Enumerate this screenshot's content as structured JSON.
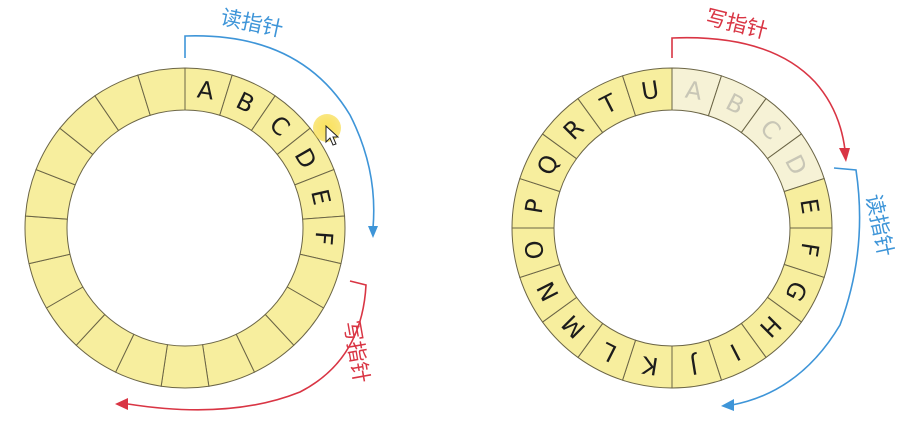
{
  "colors": {
    "background": "#ffffff",
    "cell_fill": "#f7ee9e",
    "cell_fill_faded": "#f6f2d6",
    "cell_stroke": "#6b6546",
    "letter": "#1c1c1c",
    "letter_faded": "#c8c6b6",
    "read_pointer": "#3e95d8",
    "write_pointer": "#d93544",
    "cursor_highlight": "#f5d31c"
  },
  "left_ring": {
    "cells": [
      "A",
      "B",
      "C",
      "D",
      "E",
      "F",
      "",
      "",
      "",
      "",
      "",
      "",
      "",
      "",
      "",
      "",
      "",
      "",
      "",
      "",
      ""
    ],
    "faded_indices": [],
    "read_pointer_label": "读指针",
    "write_pointer_label": "写指针"
  },
  "right_ring": {
    "cells": [
      "A",
      "B",
      "C",
      "D",
      "E",
      "F",
      "G",
      "H",
      "I",
      "J",
      "K",
      "L",
      "M",
      "N",
      "O",
      "P",
      "Q",
      "R",
      "T",
      "U"
    ],
    "faded_indices": [
      0,
      1,
      2,
      3
    ],
    "write_pointer_label": "写指针",
    "read_pointer_label": "读指针"
  },
  "icons": {
    "cursor": "mouse-pointer-icon"
  }
}
